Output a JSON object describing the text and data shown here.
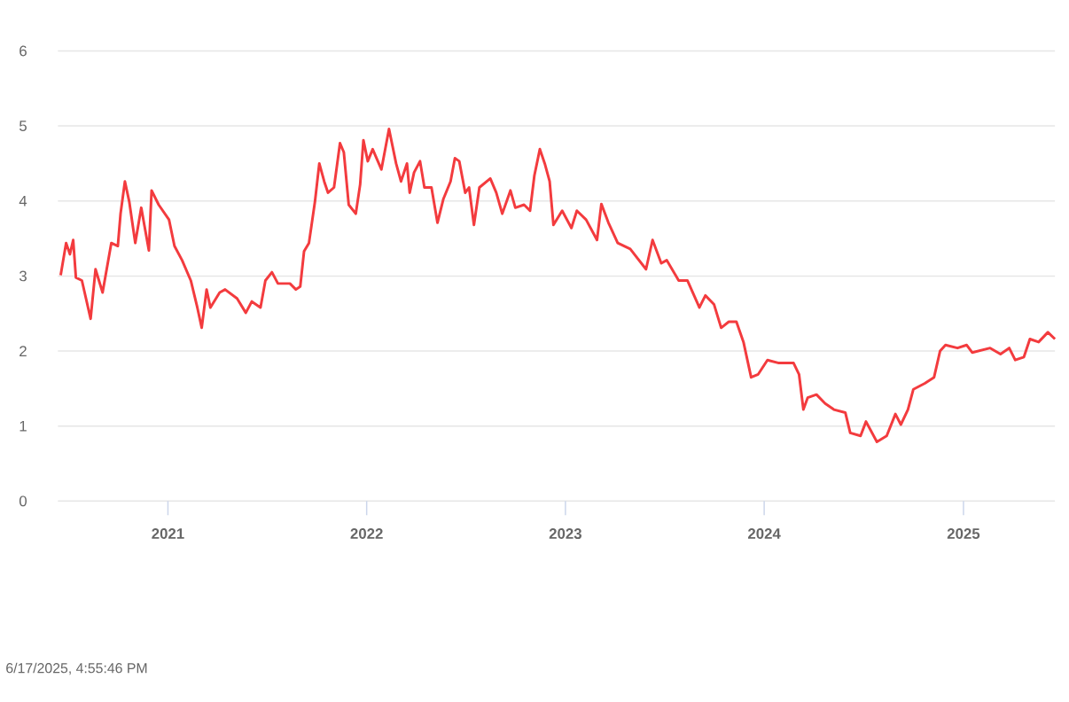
{
  "chart_data": {
    "type": "line",
    "color": "#f33b3e",
    "grid": "y",
    "line_style": "solid",
    "ylim": [
      0,
      6
    ],
    "yticks": [
      0,
      1,
      2,
      3,
      4,
      5,
      6
    ],
    "xlim": [
      "2020-06-13",
      "2025-06-18"
    ],
    "xticks": [
      "2021",
      "2022",
      "2023",
      "2024",
      "2025"
    ],
    "annotations": [
      "6/17/2025, 4:55:46 PM"
    ],
    "x": [
      "2020-06-18",
      "2020-06-28",
      "2020-07-05",
      "2020-07-11",
      "2020-07-16",
      "2020-07-27",
      "2020-08-12",
      "2020-08-21",
      "2020-09-03",
      "2020-09-19",
      "2020-10-01",
      "2020-10-06",
      "2020-10-14",
      "2020-10-22",
      "2020-11-02",
      "2020-11-13",
      "2020-11-27",
      "2020-12-02",
      "2020-12-15",
      "2021-01-03",
      "2021-01-13",
      "2021-01-27",
      "2021-02-12",
      "2021-02-24",
      "2021-03-04",
      "2021-03-13",
      "2021-03-20",
      "2021-04-06",
      "2021-04-16",
      "2021-05-08",
      "2021-05-24",
      "2021-06-04",
      "2021-06-20",
      "2021-06-29",
      "2021-07-11",
      "2021-07-22",
      "2021-08-13",
      "2021-08-24",
      "2021-09-01",
      "2021-09-08",
      "2021-09-17",
      "2021-09-28",
      "2021-10-06",
      "2021-10-15",
      "2021-10-22",
      "2021-11-02",
      "2021-11-13",
      "2021-11-20",
      "2021-11-29",
      "2021-12-12",
      "2021-12-20",
      "2021-12-26",
      "2022-01-03",
      "2022-01-12",
      "2022-01-28",
      "2022-02-11",
      "2022-02-24",
      "2022-03-05",
      "2022-03-16",
      "2022-03-21",
      "2022-03-29",
      "2022-04-09",
      "2022-04-17",
      "2022-04-30",
      "2022-05-11",
      "2022-05-22",
      "2022-06-04",
      "2022-06-12",
      "2022-06-20",
      "2022-07-01",
      "2022-07-08",
      "2022-07-17",
      "2022-07-27",
      "2022-08-16",
      "2022-08-27",
      "2022-09-07",
      "2022-09-22",
      "2022-10-01",
      "2022-10-17",
      "2022-10-28",
      "2022-11-05",
      "2022-11-15",
      "2022-11-24",
      "2022-12-03",
      "2022-12-10",
      "2022-12-26",
      "2023-01-12",
      "2023-01-22",
      "2023-02-08",
      "2023-02-28",
      "2023-03-08",
      "2023-03-21",
      "2023-04-07",
      "2023-04-30",
      "2023-05-29",
      "2023-06-10",
      "2023-06-26",
      "2023-07-06",
      "2023-07-28",
      "2023-08-13",
      "2023-09-04",
      "2023-09-15",
      "2023-10-01",
      "2023-10-14",
      "2023-10-28",
      "2023-11-11",
      "2023-11-24",
      "2023-12-08",
      "2023-12-21",
      "2024-01-07",
      "2024-01-28",
      "2024-02-24",
      "2024-03-05",
      "2024-03-13",
      "2024-03-21",
      "2024-04-06",
      "2024-04-22",
      "2024-05-08",
      "2024-05-29",
      "2024-06-07",
      "2024-06-26",
      "2024-07-06",
      "2024-07-26",
      "2024-08-13",
      "2024-08-29",
      "2024-09-08",
      "2024-09-21",
      "2024-10-01",
      "2024-10-22",
      "2024-11-08",
      "2024-11-19",
      "2024-11-29",
      "2024-12-21",
      "2025-01-07",
      "2025-01-17",
      "2025-02-19",
      "2025-03-10",
      "2025-03-26",
      "2025-04-06",
      "2025-04-22",
      "2025-05-03",
      "2025-05-19",
      "2025-06-05",
      "2025-06-18"
    ],
    "values": [
      3.01,
      3.44,
      3.29,
      3.48,
      2.98,
      2.94,
      2.43,
      3.09,
      2.78,
      3.44,
      3.4,
      3.83,
      4.26,
      3.99,
      3.44,
      3.91,
      3.34,
      4.14,
      3.95,
      3.75,
      3.4,
      3.21,
      2.94,
      2.58,
      2.31,
      2.82,
      2.58,
      2.78,
      2.82,
      2.7,
      2.51,
      2.66,
      2.58,
      2.94,
      3.05,
      2.9,
      2.9,
      2.82,
      2.86,
      3.33,
      3.44,
      3.99,
      4.5,
      4.26,
      4.11,
      4.18,
      4.77,
      4.65,
      3.95,
      3.83,
      4.22,
      4.81,
      4.53,
      4.69,
      4.42,
      4.96,
      4.5,
      4.26,
      4.5,
      4.11,
      4.38,
      4.53,
      4.18,
      4.18,
      3.71,
      4.03,
      4.26,
      4.57,
      4.53,
      4.11,
      4.18,
      3.68,
      4.18,
      4.3,
      4.11,
      3.83,
      4.14,
      3.91,
      3.95,
      3.87,
      4.34,
      4.69,
      4.5,
      4.26,
      3.68,
      3.87,
      3.64,
      3.87,
      3.75,
      3.48,
      3.96,
      3.71,
      3.44,
      3.36,
      3.09,
      3.48,
      3.17,
      3.21,
      2.94,
      2.94,
      2.58,
      2.74,
      2.62,
      2.31,
      2.39,
      2.39,
      2.12,
      1.65,
      1.69,
      1.88,
      1.84,
      1.84,
      1.69,
      1.22,
      1.38,
      1.42,
      1.3,
      1.22,
      1.18,
      0.91,
      0.87,
      1.06,
      0.79,
      0.87,
      1.16,
      1.02,
      1.22,
      1.49,
      1.57,
      1.65,
      2.0,
      2.08,
      2.04,
      2.08,
      1.98,
      2.04,
      1.96,
      2.04,
      1.88,
      1.92,
      2.16,
      2.12,
      2.25,
      2.16
    ]
  }
}
